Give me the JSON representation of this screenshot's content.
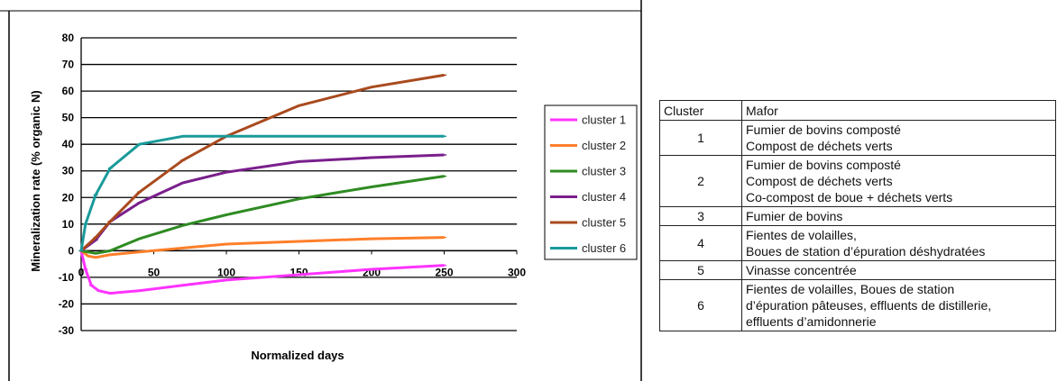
{
  "chart_data": {
    "type": "line",
    "xlabel": "Normalized days",
    "ylabel": "Mineralization rate (% organic N)",
    "xlim": [
      0,
      300
    ],
    "ylim": [
      -30,
      80
    ],
    "x_ticks": [
      0,
      50,
      100,
      150,
      200,
      250,
      300
    ],
    "y_ticks": [
      80,
      70,
      60,
      50,
      40,
      30,
      20,
      10,
      0,
      -10,
      -20,
      -30
    ],
    "grid": "horizontal",
    "legend_position": "right",
    "series": [
      {
        "name": "cluster 1",
        "color": "#ff33ff",
        "points": [
          [
            0,
            0
          ],
          [
            3,
            -7
          ],
          [
            7,
            -13
          ],
          [
            12,
            -15
          ],
          [
            20,
            -16
          ],
          [
            40,
            -15
          ],
          [
            70,
            -13
          ],
          [
            100,
            -11
          ],
          [
            150,
            -9
          ],
          [
            200,
            -7
          ],
          [
            250,
            -5.5
          ]
        ]
      },
      {
        "name": "cluster 2",
        "color": "#ff7f2a",
        "points": [
          [
            0,
            0
          ],
          [
            5,
            -2
          ],
          [
            10,
            -2.5
          ],
          [
            20,
            -1.5
          ],
          [
            40,
            -0.5
          ],
          [
            70,
            1
          ],
          [
            100,
            2.5
          ],
          [
            150,
            3.5
          ],
          [
            200,
            4.5
          ],
          [
            250,
            5
          ]
        ]
      },
      {
        "name": "cluster 3",
        "color": "#2e8b22",
        "points": [
          [
            0,
            0
          ],
          [
            10,
            -1
          ],
          [
            20,
            0
          ],
          [
            40,
            4.5
          ],
          [
            70,
            9.5
          ],
          [
            100,
            13.5
          ],
          [
            150,
            19.5
          ],
          [
            200,
            24
          ],
          [
            250,
            28
          ]
        ]
      },
      {
        "name": "cluster 4",
        "color": "#7a1f8c",
        "points": [
          [
            0,
            0
          ],
          [
            10,
            4
          ],
          [
            20,
            11
          ],
          [
            40,
            18
          ],
          [
            70,
            25.5
          ],
          [
            100,
            29.5
          ],
          [
            150,
            33.5
          ],
          [
            200,
            35
          ],
          [
            250,
            36
          ]
        ]
      },
      {
        "name": "cluster 5",
        "color": "#a94a1e",
        "points": [
          [
            0,
            0
          ],
          [
            10,
            5
          ],
          [
            20,
            11
          ],
          [
            40,
            22
          ],
          [
            70,
            34
          ],
          [
            100,
            43
          ],
          [
            150,
            54.5
          ],
          [
            200,
            61.5
          ],
          [
            250,
            66
          ]
        ]
      },
      {
        "name": "cluster 6",
        "color": "#1a9a9a",
        "points": [
          [
            0,
            0
          ],
          [
            3,
            10
          ],
          [
            10,
            21
          ],
          [
            20,
            31
          ],
          [
            40,
            40
          ],
          [
            70,
            43
          ],
          [
            100,
            43
          ],
          [
            150,
            43
          ],
          [
            200,
            43
          ],
          [
            250,
            43
          ]
        ]
      }
    ]
  },
  "table": {
    "headers": [
      "Cluster",
      "Mafor"
    ],
    "rows": [
      {
        "cluster": "1",
        "lines": [
          "Fumier de bovins composté",
          "Compost de déchets verts"
        ]
      },
      {
        "cluster": "2",
        "lines": [
          "Fumier de bovins composté",
          "Compost de déchets verts",
          "Co-compost de boue + déchets verts"
        ]
      },
      {
        "cluster": "3",
        "lines": [
          "Fumier de bovins"
        ]
      },
      {
        "cluster": "4",
        "lines": [
          "Fientes de volailles,",
          "Boues de station d’épuration déshydratées"
        ]
      },
      {
        "cluster": "5",
        "lines": [
          "Vinasse concentrée"
        ]
      },
      {
        "cluster": "6",
        "lines": [
          "Fientes de volailles, Boues de station",
          "d’épuration pâteuses, effluents de distillerie,",
          "effluents d’amidonnerie"
        ]
      }
    ]
  }
}
